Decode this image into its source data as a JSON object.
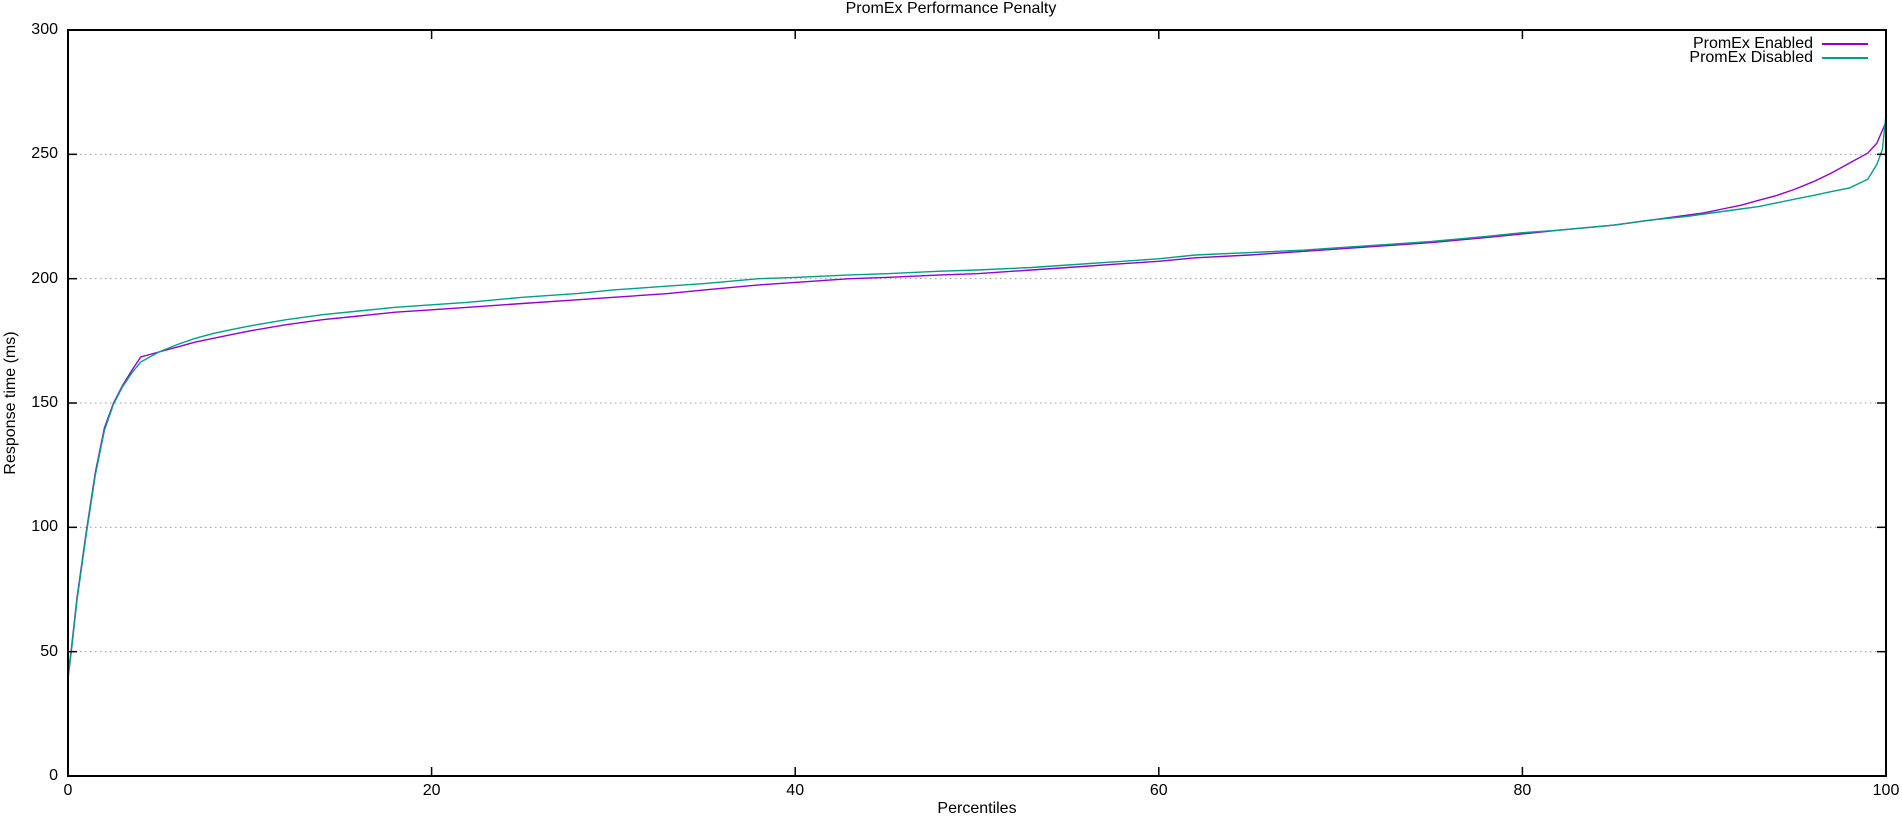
{
  "chart_data": {
    "type": "line",
    "title": "PromEx Performance Penalty",
    "xlabel": "Percentiles",
    "ylabel": "Response time (ms)",
    "xlim": [
      0,
      100
    ],
    "ylim": [
      0,
      300
    ],
    "xticks": [
      0,
      20,
      40,
      60,
      80,
      100
    ],
    "yticks": [
      0,
      50,
      100,
      150,
      200,
      250,
      300
    ],
    "grid": "horizontal-dotted",
    "grid_color": "#9a9a9a",
    "axis_color": "#000000",
    "legend_position": "top-right-inside",
    "series": [
      {
        "name": "PromEx Enabled",
        "color": "#9400d3",
        "points": [
          [
            0,
            40
          ],
          [
            0.2,
            52
          ],
          [
            0.5,
            72
          ],
          [
            1,
            98
          ],
          [
            1.5,
            122
          ],
          [
            2,
            140
          ],
          [
            2.5,
            150
          ],
          [
            3,
            157
          ],
          [
            3.5,
            163
          ],
          [
            4,
            168.5
          ],
          [
            5,
            170.5
          ],
          [
            6,
            172.5
          ],
          [
            7,
            174.5
          ],
          [
            8,
            176
          ],
          [
            9,
            177.5
          ],
          [
            10,
            179
          ],
          [
            12,
            181.5
          ],
          [
            14,
            183.5
          ],
          [
            16,
            185
          ],
          [
            18,
            186.5
          ],
          [
            20,
            187.5
          ],
          [
            22,
            188.5
          ],
          [
            25,
            190
          ],
          [
            28,
            191.5
          ],
          [
            30,
            192.5
          ],
          [
            33,
            194
          ],
          [
            35,
            195.5
          ],
          [
            38,
            197.5
          ],
          [
            40,
            198.5
          ],
          [
            43,
            200
          ],
          [
            45,
            200.5
          ],
          [
            48,
            201.5
          ],
          [
            50,
            202
          ],
          [
            53,
            203.5
          ],
          [
            55,
            204.5
          ],
          [
            58,
            206
          ],
          [
            60,
            207
          ],
          [
            62,
            208.4
          ],
          [
            65,
            209.5
          ],
          [
            68,
            211
          ],
          [
            70,
            212
          ],
          [
            73,
            213.5
          ],
          [
            75,
            214.5
          ],
          [
            78,
            216.5
          ],
          [
            80,
            218
          ],
          [
            82,
            219.5
          ],
          [
            85,
            221.5
          ],
          [
            87,
            223.5
          ],
          [
            89,
            225.5
          ],
          [
            90,
            226.5
          ],
          [
            91,
            228
          ],
          [
            92,
            229.5
          ],
          [
            93,
            231.5
          ],
          [
            94,
            233.5
          ],
          [
            95,
            236
          ],
          [
            96,
            239
          ],
          [
            97,
            242.5
          ],
          [
            98,
            246.5
          ],
          [
            99,
            250.5
          ],
          [
            99.5,
            254.5
          ],
          [
            100,
            263
          ]
        ]
      },
      {
        "name": "PromEx Disabled",
        "color": "#00a086",
        "points": [
          [
            0,
            39
          ],
          [
            0.2,
            51
          ],
          [
            0.5,
            71
          ],
          [
            1,
            97
          ],
          [
            1.5,
            121
          ],
          [
            2,
            139
          ],
          [
            2.5,
            149.5
          ],
          [
            3,
            156.5
          ],
          [
            3.5,
            162
          ],
          [
            4,
            166.5
          ],
          [
            5,
            170.5
          ],
          [
            6,
            173.5
          ],
          [
            7,
            176
          ],
          [
            8,
            178
          ],
          [
            9,
            179.5
          ],
          [
            10,
            181
          ],
          [
            12,
            183.5
          ],
          [
            14,
            185.5
          ],
          [
            16,
            187
          ],
          [
            18,
            188.5
          ],
          [
            20,
            189.5
          ],
          [
            22,
            190.5
          ],
          [
            25,
            192.5
          ],
          [
            28,
            194
          ],
          [
            30,
            195.5
          ],
          [
            33,
            197
          ],
          [
            35,
            198
          ],
          [
            38,
            200
          ],
          [
            40,
            200.5
          ],
          [
            43,
            201.5
          ],
          [
            45,
            202
          ],
          [
            48,
            203
          ],
          [
            50,
            203.5
          ],
          [
            53,
            204.5
          ],
          [
            55,
            205.5
          ],
          [
            58,
            207
          ],
          [
            60,
            208
          ],
          [
            62,
            209.5
          ],
          [
            65,
            210.5
          ],
          [
            68,
            211.5
          ],
          [
            70,
            212.5
          ],
          [
            73,
            214
          ],
          [
            75,
            215
          ],
          [
            78,
            217
          ],
          [
            80,
            218.5
          ],
          [
            82,
            219.5
          ],
          [
            85,
            221.5
          ],
          [
            87,
            223.5
          ],
          [
            89,
            225
          ],
          [
            90,
            226
          ],
          [
            91,
            227
          ],
          [
            92,
            228
          ],
          [
            93,
            229
          ],
          [
            94,
            230.5
          ],
          [
            95,
            232
          ],
          [
            96,
            233.5
          ],
          [
            97,
            235
          ],
          [
            98,
            236.5
          ],
          [
            99,
            240
          ],
          [
            99.5,
            246
          ],
          [
            99.8,
            252
          ],
          [
            100,
            266
          ]
        ]
      }
    ]
  }
}
